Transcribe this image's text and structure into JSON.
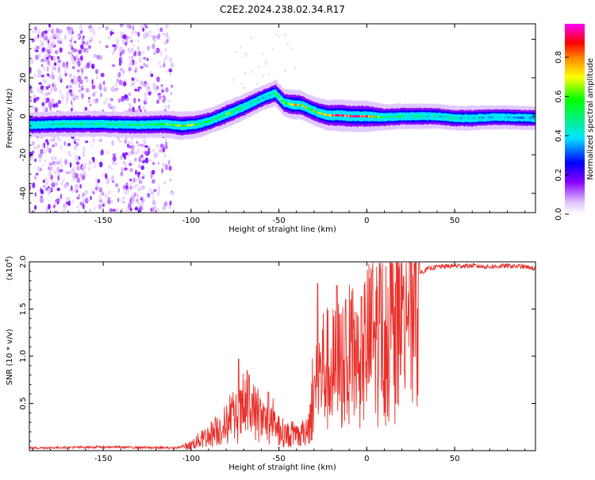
{
  "chart_data": [
    {
      "type": "heatmap",
      "title": "C2E2.2024.238.02.34.R17",
      "xlabel": "Height of straight line (km)",
      "ylabel": "Frequency (Hz)",
      "xlim": [
        -192,
        96
      ],
      "ylim": [
        -50,
        48
      ],
      "xticks": [
        "-150",
        "-100",
        "-50",
        "0",
        "50"
      ],
      "yticks": [
        "40",
        "20",
        "0",
        "-20",
        "-40"
      ],
      "colorbar": {
        "label": "Normalized spectral amplitude",
        "range": [
          0,
          0.97
        ],
        "ticks": [
          "0.0",
          "0.2",
          "0.4",
          "0.6",
          "0.8"
        ],
        "colors": [
          "#ffffff",
          "#e0c8ff",
          "#8800ff",
          "#0000ff",
          "#00e5ff",
          "#00ff00",
          "#ffff00",
          "#ff8800",
          "#ff0000",
          "#ff00ff"
        ]
      },
      "ridge": {
        "x": [
          -192,
          -170,
          -150,
          -130,
          -115,
          -105,
          -95,
          -88,
          -80,
          -72,
          -65,
          -58,
          -52,
          -47,
          -42,
          -38,
          -33,
          -28,
          -22,
          -15,
          -8,
          0,
          10,
          20,
          30,
          40,
          50,
          60,
          70,
          80,
          96
        ],
        "y": [
          -4.5,
          -4,
          -4,
          -4.5,
          -4,
          -5,
          -4,
          -2,
          1,
          4,
          7,
          10,
          12,
          7,
          6,
          6,
          4,
          2,
          0.5,
          0.5,
          0,
          0,
          -0.5,
          0,
          0,
          0,
          -1,
          -1,
          -0.5,
          -0.5,
          -1
        ],
        "amplitude": [
          0.45,
          0.5,
          0.5,
          0.55,
          0.6,
          0.7,
          0.6,
          0.5,
          0.6,
          0.55,
          0.5,
          0.45,
          0.55,
          0.6,
          0.8,
          0.75,
          0.7,
          0.75,
          0.85,
          0.95,
          0.9,
          0.9,
          0.55,
          0.5,
          0.5,
          0.45,
          0.45,
          0.45,
          0.4,
          0.4,
          0.4
        ]
      },
      "noise_region_x": [
        -192,
        -110
      ]
    },
    {
      "type": "line",
      "xlabel": "Height of straight line (km)",
      "ylabel": "SNR (10 * v/v)",
      "y_multiplier": "(x10",
      "y_multiplier_exp": "4",
      "y_multiplier_close": ")",
      "xlim": [
        -192,
        96
      ],
      "ylim": [
        0,
        2.0
      ],
      "xticks": [
        "-150",
        "-100",
        "-50",
        "0",
        "50"
      ],
      "yticks": [
        "2.0",
        "1.5",
        "1.0",
        "0.5"
      ],
      "color": "#e8302a",
      "envelope": {
        "x": [
          -192,
          -150,
          -110,
          -102,
          -95,
          -88,
          -80,
          -72,
          -67,
          -60,
          -52,
          -45,
          -38,
          -33,
          -29,
          -25,
          -20,
          -15,
          -10,
          -5,
          0,
          5,
          10,
          15,
          20,
          25,
          30,
          35,
          40,
          50,
          60,
          70,
          80,
          90,
          96
        ],
        "y": [
          0.03,
          0.04,
          0.03,
          0.05,
          0.12,
          0.2,
          0.3,
          0.4,
          0.5,
          0.35,
          0.25,
          0.18,
          0.15,
          0.3,
          0.7,
          0.95,
          0.9,
          1.0,
          1.05,
          1.1,
          1.2,
          1.3,
          1.35,
          1.5,
          1.7,
          1.8,
          1.88,
          1.93,
          1.95,
          1.96,
          1.96,
          1.95,
          1.96,
          1.95,
          1.93
        ]
      },
      "peaks": {
        "x": [
          -73,
          -68,
          -56,
          -28,
          -17,
          -12,
          -3,
          3,
          8,
          21
        ],
        "y": [
          0.97,
          0.85,
          0.62,
          1.77,
          1.75,
          1.6,
          1.63,
          1.9,
          1.92,
          1.85
        ]
      }
    }
  ]
}
